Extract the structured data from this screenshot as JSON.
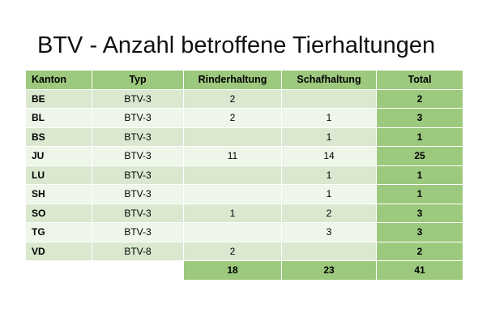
{
  "title": "BTV - Anzahl betroffene Tierhaltungen",
  "headers": {
    "kanton": "Kanton",
    "typ": "Typ",
    "rinder": "Rinderhaltung",
    "schaf": "Schafhaltung",
    "total": "Total"
  },
  "rows": [
    {
      "kanton": "BE",
      "typ": "BTV-3",
      "rinder": "2",
      "schaf": "",
      "total": "2"
    },
    {
      "kanton": "BL",
      "typ": "BTV-3",
      "rinder": "2",
      "schaf": "1",
      "total": "3"
    },
    {
      "kanton": "BS",
      "typ": "BTV-3",
      "rinder": "",
      "schaf": "1",
      "total": "1"
    },
    {
      "kanton": "JU",
      "typ": "BTV-3",
      "rinder": "11",
      "schaf": "14",
      "total": "25"
    },
    {
      "kanton": "LU",
      "typ": "BTV-3",
      "rinder": "",
      "schaf": "1",
      "total": "1"
    },
    {
      "kanton": "SH",
      "typ": "BTV-3",
      "rinder": "",
      "schaf": "1",
      "total": "1"
    },
    {
      "kanton": "SO",
      "typ": "BTV-3",
      "rinder": "1",
      "schaf": "2",
      "total": "3"
    },
    {
      "kanton": "TG",
      "typ": "BTV-3",
      "rinder": "",
      "schaf": "3",
      "total": "3"
    },
    {
      "kanton": "VD",
      "typ": "BTV-8",
      "rinder": "2",
      "schaf": "",
      "total": "2"
    }
  ],
  "sums": {
    "rinder": "18",
    "schaf": "23",
    "total": "41"
  },
  "colors": {
    "header": "#9dc97e",
    "row_dark": "#d9e8cf",
    "row_light": "#eef5e9"
  }
}
